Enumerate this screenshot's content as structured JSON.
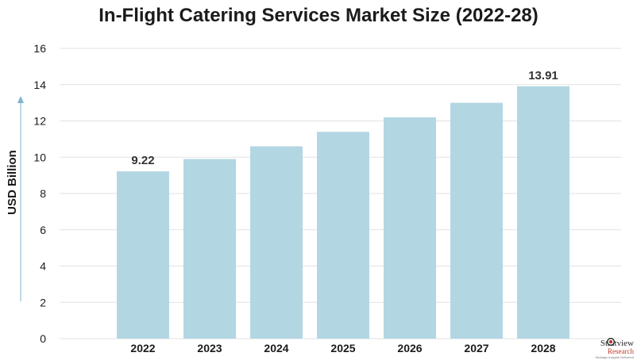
{
  "chart_data": {
    "type": "bar",
    "title": "In-Flight Catering Services Market Size (2022-28)",
    "ylabel": "USD Billion",
    "xlabel": "",
    "categories": [
      "2022",
      "2023",
      "2024",
      "2025",
      "2026",
      "2027",
      "2028"
    ],
    "values": [
      9.22,
      9.9,
      10.6,
      11.4,
      12.2,
      13.0,
      13.91
    ],
    "data_labels": {
      "2022": "9.22",
      "2028": "13.91"
    },
    "ylim": [
      0,
      16
    ],
    "yticks": [
      0,
      2,
      4,
      6,
      8,
      10,
      12,
      14,
      16
    ],
    "grid": true,
    "legend": "none",
    "colors": {
      "bar": "#b3d6e3",
      "grid": "#e2e2e2",
      "axis_arrow": "#7fb3cf",
      "text": "#1b1b1b"
    }
  },
  "logo": {
    "name": "Stratview",
    "sub": "Research",
    "tagline": "Strategic Insights Delivered"
  }
}
